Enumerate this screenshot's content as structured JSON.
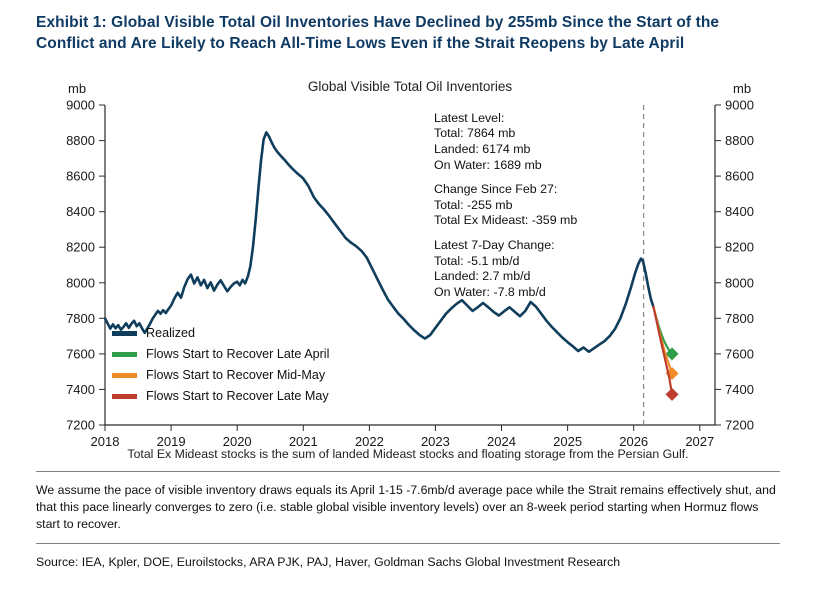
{
  "page": {
    "title": "Exhibit 1: Global Visible Total Oil Inventories Have Declined by 255mb Since the Start of the Conflict and Are Likely to Reach All-Time Lows Even if the Strait Reopens by Late April",
    "title_color": "#0f3a63",
    "footnote": "Total Ex Mideast stocks is the sum of landed Mideast stocks and floating storage from the Persian Gulf.",
    "assumption": "We assume the pace of visible inventory draws equals its April 1-15 -7.6mb/d average pace while the Strait remains effectively shut, and that this pace linearly converges to zero (i.e. stable global visible inventory levels) over an 8-week period starting when Hormuz flows start to recover.",
    "source": "Source: IEA, Kpler, DOE, Euroilstocks, ARA PJK, PAJ, Haver, Goldman Sachs Global Investment Research"
  },
  "annotation": {
    "latest_level_header": "Latest Level:",
    "latest_total": "Total: 7864 mb",
    "latest_landed": "Landed: 6174 mb",
    "latest_on_water": "On Water: 1689 mb",
    "change_header": "Change Since Feb 27:",
    "change_total": "Total: -255 mb",
    "change_ex_mideast": "Total Ex Mideast: -359 mb",
    "seven_day_header": "Latest 7-Day Change:",
    "seven_day_total": "Total: -5.1 mb/d",
    "seven_day_landed": "Landed: 2.7 mb/d",
    "seven_day_on_water": "On Water: -7.8 mb/d"
  },
  "chart_data": {
    "type": "line",
    "title": "Global Visible Total Oil Inventories",
    "y_axis_label_left": "mb",
    "y_axis_label_right": "mb",
    "ylim": [
      7200,
      9000
    ],
    "xlim": [
      2018,
      2027.23
    ],
    "y_ticks": [
      7200,
      7400,
      7600,
      7800,
      8000,
      8200,
      8400,
      8600,
      8800,
      9000
    ],
    "x_ticks": [
      2018,
      2019,
      2020,
      2021,
      2022,
      2023,
      2024,
      2025,
      2026,
      2027
    ],
    "grid": false,
    "legend_position": "inside-lower-left",
    "axis_color": "#2b2b2b",
    "event_line_x": 2026.15,
    "event_line_color": "#8f8f8f",
    "series": [
      {
        "name": "Realized",
        "color": "#0f3d5c",
        "width": 2.6,
        "marker": "none",
        "points": [
          [
            2018.0,
            7800
          ],
          [
            2018.04,
            7772
          ],
          [
            2018.08,
            7742
          ],
          [
            2018.12,
            7766
          ],
          [
            2018.16,
            7744
          ],
          [
            2018.2,
            7762
          ],
          [
            2018.24,
            7736
          ],
          [
            2018.28,
            7752
          ],
          [
            2018.32,
            7772
          ],
          [
            2018.36,
            7746
          ],
          [
            2018.4,
            7770
          ],
          [
            2018.44,
            7786
          ],
          [
            2018.48,
            7756
          ],
          [
            2018.52,
            7772
          ],
          [
            2018.56,
            7744
          ],
          [
            2018.6,
            7718
          ],
          [
            2018.64,
            7742
          ],
          [
            2018.68,
            7768
          ],
          [
            2018.72,
            7798
          ],
          [
            2018.76,
            7820
          ],
          [
            2018.8,
            7842
          ],
          [
            2018.84,
            7826
          ],
          [
            2018.88,
            7846
          ],
          [
            2018.92,
            7830
          ],
          [
            2018.96,
            7852
          ],
          [
            2019.0,
            7872
          ],
          [
            2019.05,
            7912
          ],
          [
            2019.1,
            7944
          ],
          [
            2019.15,
            7916
          ],
          [
            2019.2,
            7976
          ],
          [
            2019.25,
            8020
          ],
          [
            2019.3,
            8046
          ],
          [
            2019.35,
            7996
          ],
          [
            2019.4,
            8030
          ],
          [
            2019.45,
            7986
          ],
          [
            2019.5,
            8016
          ],
          [
            2019.55,
            7970
          ],
          [
            2019.6,
            8002
          ],
          [
            2019.65,
            7956
          ],
          [
            2019.7,
            7990
          ],
          [
            2019.75,
            8014
          ],
          [
            2019.8,
            7982
          ],
          [
            2019.85,
            7952
          ],
          [
            2019.9,
            7976
          ],
          [
            2019.95,
            7996
          ],
          [
            2020.0,
            8006
          ],
          [
            2020.04,
            7986
          ],
          [
            2020.08,
            8016
          ],
          [
            2020.12,
            7996
          ],
          [
            2020.16,
            8034
          ],
          [
            2020.2,
            8094
          ],
          [
            2020.24,
            8204
          ],
          [
            2020.28,
            8356
          ],
          [
            2020.32,
            8524
          ],
          [
            2020.36,
            8686
          ],
          [
            2020.4,
            8806
          ],
          [
            2020.44,
            8846
          ],
          [
            2020.48,
            8824
          ],
          [
            2020.52,
            8792
          ],
          [
            2020.56,
            8762
          ],
          [
            2020.6,
            8740
          ],
          [
            2020.64,
            8722
          ],
          [
            2020.68,
            8706
          ],
          [
            2020.72,
            8690
          ],
          [
            2020.76,
            8672
          ],
          [
            2020.8,
            8656
          ],
          [
            2020.84,
            8640
          ],
          [
            2020.88,
            8626
          ],
          [
            2020.92,
            8612
          ],
          [
            2020.96,
            8600
          ],
          [
            2021.0,
            8586
          ],
          [
            2021.08,
            8542
          ],
          [
            2021.16,
            8482
          ],
          [
            2021.24,
            8442
          ],
          [
            2021.32,
            8410
          ],
          [
            2021.4,
            8372
          ],
          [
            2021.48,
            8332
          ],
          [
            2021.56,
            8292
          ],
          [
            2021.64,
            8252
          ],
          [
            2021.72,
            8226
          ],
          [
            2021.8,
            8206
          ],
          [
            2021.88,
            8180
          ],
          [
            2021.96,
            8142
          ],
          [
            2022.04,
            8082
          ],
          [
            2022.12,
            8022
          ],
          [
            2022.2,
            7962
          ],
          [
            2022.28,
            7906
          ],
          [
            2022.36,
            7866
          ],
          [
            2022.44,
            7826
          ],
          [
            2022.52,
            7796
          ],
          [
            2022.6,
            7762
          ],
          [
            2022.68,
            7732
          ],
          [
            2022.76,
            7706
          ],
          [
            2022.84,
            7686
          ],
          [
            2022.92,
            7706
          ],
          [
            2023.0,
            7746
          ],
          [
            2023.08,
            7786
          ],
          [
            2023.16,
            7826
          ],
          [
            2023.24,
            7856
          ],
          [
            2023.32,
            7882
          ],
          [
            2023.4,
            7902
          ],
          [
            2023.48,
            7872
          ],
          [
            2023.56,
            7842
          ],
          [
            2023.64,
            7862
          ],
          [
            2023.72,
            7886
          ],
          [
            2023.8,
            7862
          ],
          [
            2023.88,
            7836
          ],
          [
            2023.96,
            7816
          ],
          [
            2024.04,
            7840
          ],
          [
            2024.12,
            7862
          ],
          [
            2024.2,
            7836
          ],
          [
            2024.28,
            7812
          ],
          [
            2024.36,
            7842
          ],
          [
            2024.44,
            7892
          ],
          [
            2024.52,
            7866
          ],
          [
            2024.6,
            7826
          ],
          [
            2024.68,
            7786
          ],
          [
            2024.76,
            7752
          ],
          [
            2024.84,
            7722
          ],
          [
            2024.92,
            7692
          ],
          [
            2025.0,
            7666
          ],
          [
            2025.08,
            7642
          ],
          [
            2025.16,
            7616
          ],
          [
            2025.24,
            7636
          ],
          [
            2025.32,
            7612
          ],
          [
            2025.4,
            7632
          ],
          [
            2025.48,
            7652
          ],
          [
            2025.56,
            7672
          ],
          [
            2025.64,
            7702
          ],
          [
            2025.72,
            7742
          ],
          [
            2025.8,
            7802
          ],
          [
            2025.88,
            7882
          ],
          [
            2025.96,
            7976
          ],
          [
            2026.02,
            8052
          ],
          [
            2026.07,
            8106
          ],
          [
            2026.11,
            8136
          ],
          [
            2026.14,
            8122
          ],
          [
            2026.18,
            8056
          ],
          [
            2026.22,
            7976
          ],
          [
            2026.26,
            7908
          ],
          [
            2026.3,
            7864
          ]
        ]
      },
      {
        "name": "Flows Start to Recover Late April",
        "color": "#2f9e49",
        "width": 2.2,
        "marker": "diamond",
        "points": [
          [
            2026.3,
            7864
          ],
          [
            2026.34,
            7806
          ],
          [
            2026.38,
            7754
          ],
          [
            2026.42,
            7710
          ],
          [
            2026.46,
            7672
          ],
          [
            2026.5,
            7642
          ],
          [
            2026.54,
            7616
          ],
          [
            2026.58,
            7600
          ]
        ]
      },
      {
        "name": "Flows Start to Recover Mid-May",
        "color": "#ef8c28",
        "width": 2.2,
        "marker": "diamond",
        "points": [
          [
            2026.3,
            7864
          ],
          [
            2026.34,
            7800
          ],
          [
            2026.38,
            7736
          ],
          [
            2026.42,
            7678
          ],
          [
            2026.46,
            7626
          ],
          [
            2026.5,
            7578
          ],
          [
            2026.54,
            7532
          ],
          [
            2026.58,
            7490
          ]
        ]
      },
      {
        "name": "Flows Start to Recover Late May",
        "color": "#bf3d2c",
        "width": 2.2,
        "marker": "diamond",
        "points": [
          [
            2026.3,
            7864
          ],
          [
            2026.35,
            7778
          ],
          [
            2026.4,
            7692
          ],
          [
            2026.45,
            7608
          ],
          [
            2026.5,
            7526
          ],
          [
            2026.54,
            7462
          ],
          [
            2026.58,
            7372
          ]
        ]
      }
    ]
  }
}
